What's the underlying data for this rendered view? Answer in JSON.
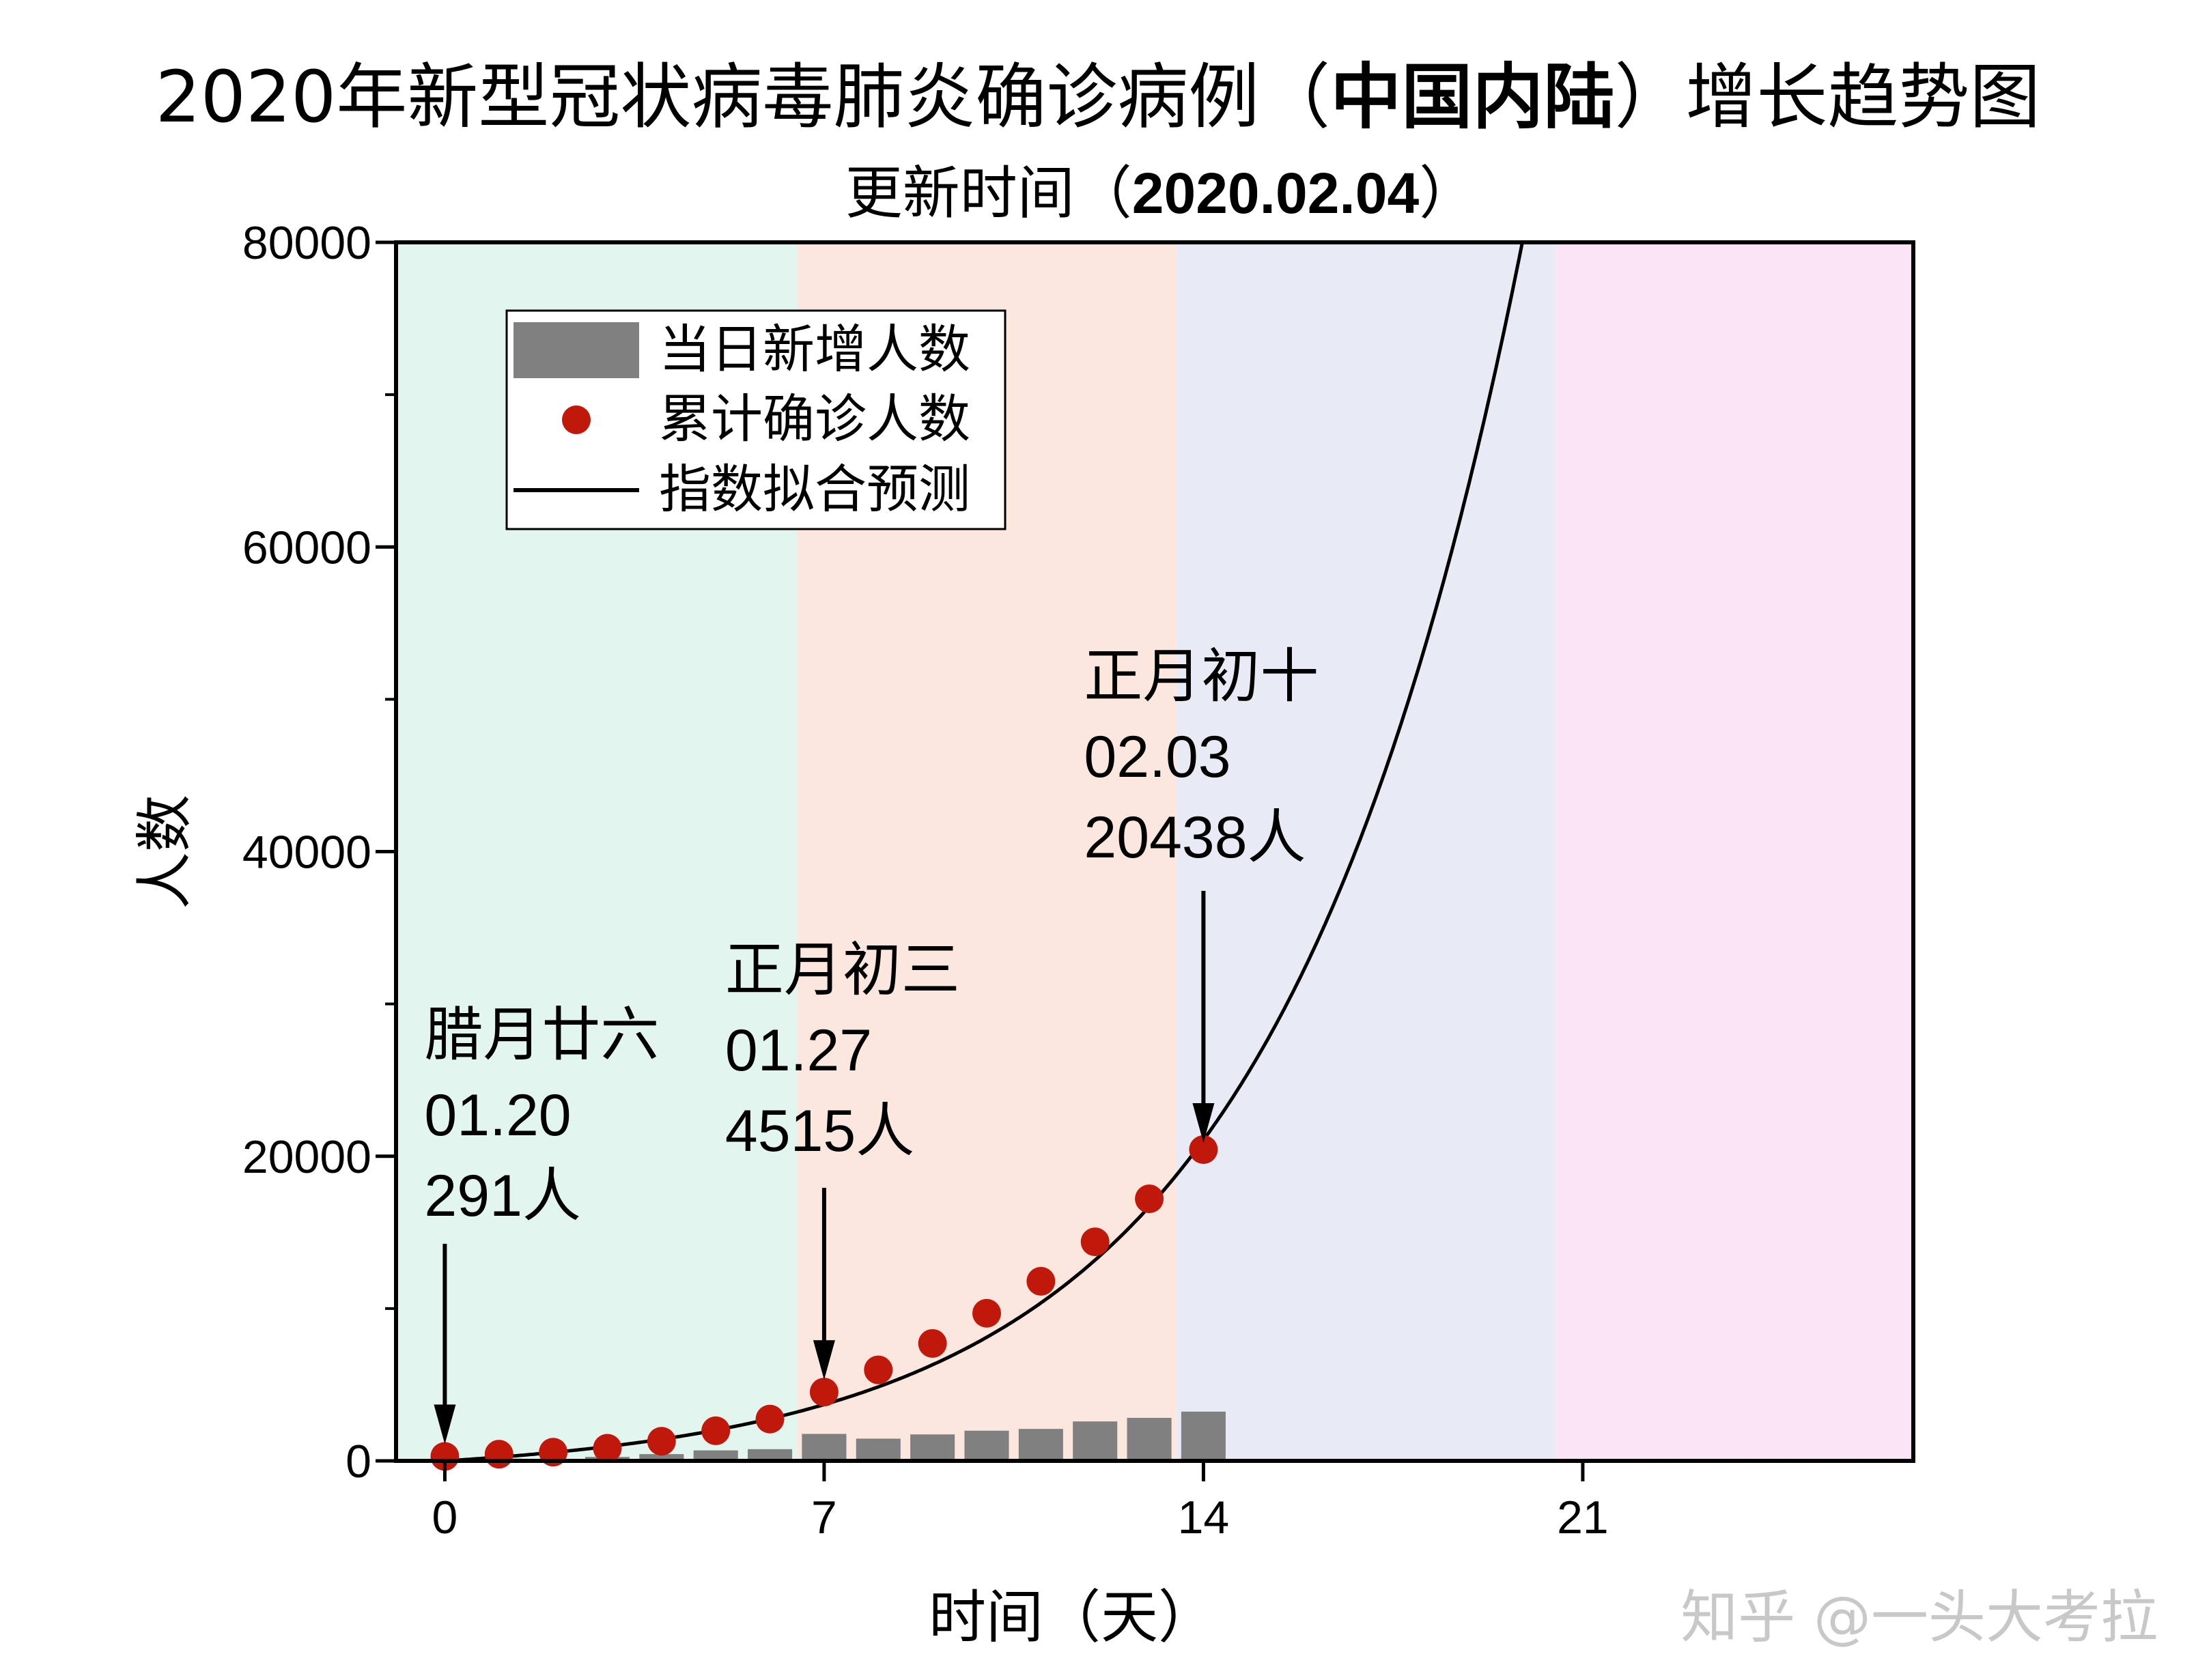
{
  "chart_data": {
    "type": "bar",
    "title_part1": "2020年新型冠状病毒肺炎确诊病例（",
    "title_bold": "中国内陆",
    "title_part2": "）增长趋势图",
    "subtitle_part1": "更新时间（",
    "subtitle_bold": "2020.02.04",
    "subtitle_part2": "）",
    "xlabel": "时间（天）",
    "ylabel": "人数",
    "xlim": [
      -0.9,
      27.1
    ],
    "ylim": [
      0,
      80000
    ],
    "xticks": [
      "0",
      "7",
      "14",
      "21"
    ],
    "yticks": [
      "0",
      "20000",
      "40000",
      "60000",
      "80000"
    ],
    "background_bands": [
      {
        "from": -0.9,
        "to": 6.5,
        "color": "#e3f5ef"
      },
      {
        "from": 6.5,
        "to": 13.5,
        "color": "#fbe7dd"
      },
      {
        "from": 13.5,
        "to": 20.5,
        "color": "#e8ebf5"
      },
      {
        "from": 20.5,
        "to": 27.1,
        "color": "#fbe4f5"
      }
    ],
    "legend": {
      "position": "top-left",
      "items": [
        "当日新增人数",
        "累计确诊人数",
        "指数拟合预测"
      ]
    },
    "series": [
      {
        "name": "当日新增人数",
        "kind": "bar",
        "color": "#808080",
        "x": [
          0,
          1,
          2,
          3,
          4,
          5,
          6,
          7,
          8,
          9,
          10,
          11,
          12,
          13,
          14
        ],
        "values": [
          77,
          149,
          131,
          259,
          444,
          688,
          769,
          1771,
          1459,
          1737,
          1981,
          2099,
          2589,
          2825,
          3233
        ]
      },
      {
        "name": "累计确诊人数",
        "kind": "scatter",
        "color": "#c0180b",
        "x": [
          0,
          1,
          2,
          3,
          4,
          5,
          6,
          7,
          8,
          9,
          10,
          11,
          12,
          13,
          14
        ],
        "values": [
          291,
          440,
          571,
          830,
          1287,
          1975,
          2744,
          4515,
          5974,
          7711,
          9692,
          11791,
          14380,
          17205,
          20438
        ]
      },
      {
        "name": "指数拟合预测",
        "kind": "line",
        "color": "#000000",
        "model": {
          "a": 1000,
          "b": 0.221,
          "c": -1000,
          "x_from": 0,
          "x_to": 20
        }
      }
    ],
    "annotations": [
      {
        "x": 0,
        "lines": [
          "腊月廿六",
          "01.20",
          "291人"
        ]
      },
      {
        "x": 7,
        "lines": [
          "正月初三",
          "01.27",
          "4515人"
        ]
      },
      {
        "x": 14,
        "lines": [
          "正月初十",
          "02.03",
          "20438人"
        ]
      }
    ]
  },
  "watermark": "知乎 @一头大考拉"
}
